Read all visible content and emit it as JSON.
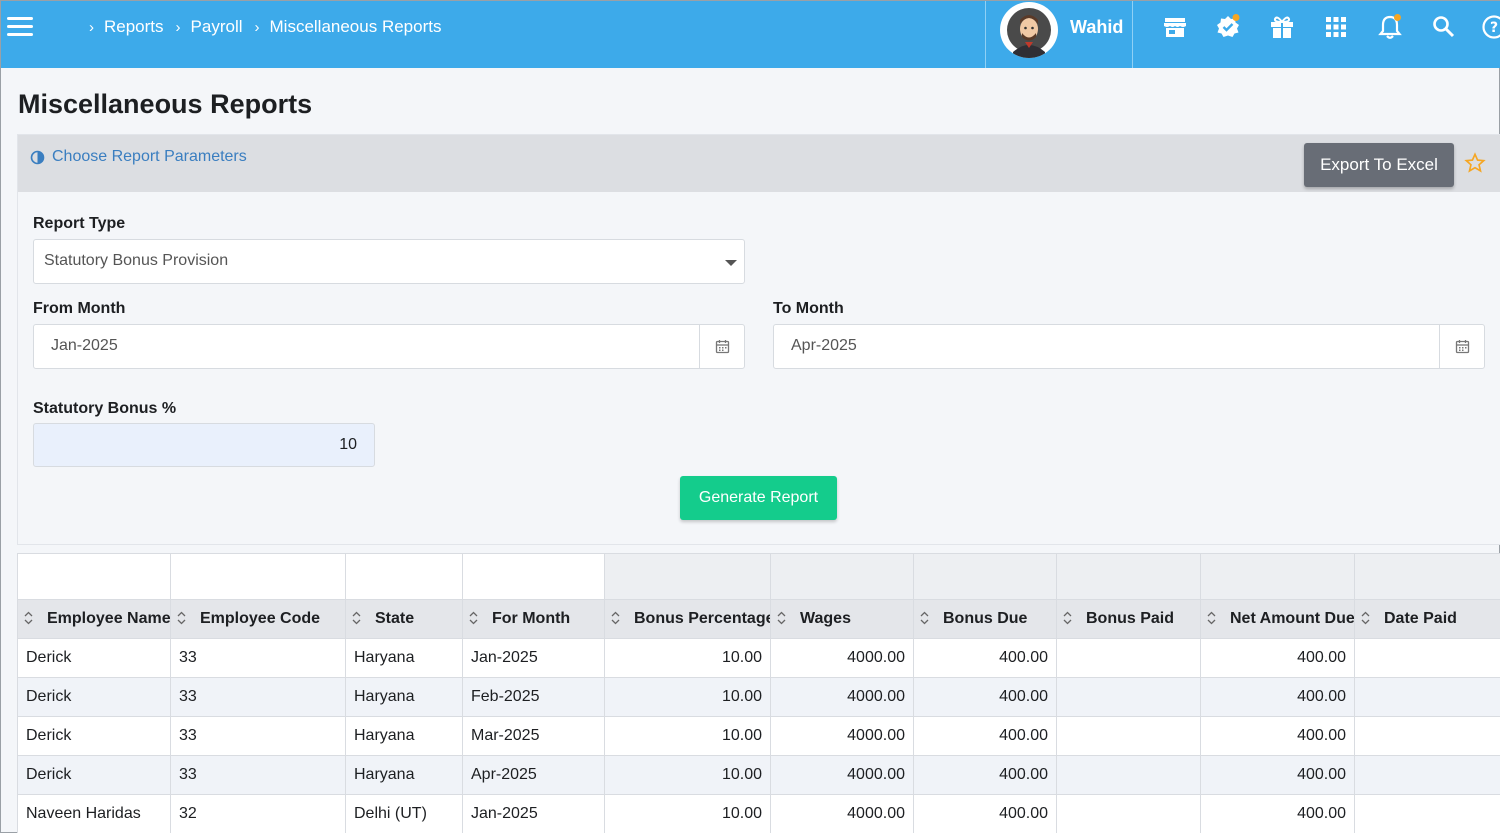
{
  "header": {
    "breadcrumbs": [
      "Reports",
      "Payroll",
      "Miscellaneous Reports"
    ],
    "user_name": "Wahid",
    "icons": [
      "store-icon",
      "verified-badge-icon",
      "gift-icon",
      "apps-grid-icon",
      "bell-icon",
      "search-icon",
      "help-icon"
    ],
    "accent_color": "#3daaea",
    "notification_dot_color": "#f5a623"
  },
  "page": {
    "title": "Miscellaneous Reports"
  },
  "params": {
    "toggle_label": "Choose Report Parameters",
    "export_label": "Export To Excel",
    "report_type_label": "Report Type",
    "report_type_value": "Statutory Bonus Provision",
    "from_month_label": "From Month",
    "from_month_value": "Jan-2025",
    "to_month_label": "To Month",
    "to_month_value": "Apr-2025",
    "bonus_label": "Statutory Bonus %",
    "bonus_value": "10",
    "generate_label": "Generate Report",
    "generate_color": "#14cc8c"
  },
  "table": {
    "columns": [
      "Employee Name",
      "Employee Code",
      "State",
      "For Month",
      "Bonus Percentage",
      "Wages",
      "Bonus Due",
      "Bonus Paid",
      "Net Amount Due",
      "Date Paid"
    ],
    "rows": [
      [
        "Derick",
        "33",
        "Haryana",
        "Jan-2025",
        "10.00",
        "4000.00",
        "400.00",
        "",
        "400.00",
        ""
      ],
      [
        "Derick",
        "33",
        "Haryana",
        "Feb-2025",
        "10.00",
        "4000.00",
        "400.00",
        "",
        "400.00",
        ""
      ],
      [
        "Derick",
        "33",
        "Haryana",
        "Mar-2025",
        "10.00",
        "4000.00",
        "400.00",
        "",
        "400.00",
        ""
      ],
      [
        "Derick",
        "33",
        "Haryana",
        "Apr-2025",
        "10.00",
        "4000.00",
        "400.00",
        "",
        "400.00",
        ""
      ],
      [
        "Naveen Haridas",
        "32",
        "Delhi (UT)",
        "Jan-2025",
        "10.00",
        "4000.00",
        "400.00",
        "",
        "400.00",
        ""
      ]
    ]
  }
}
